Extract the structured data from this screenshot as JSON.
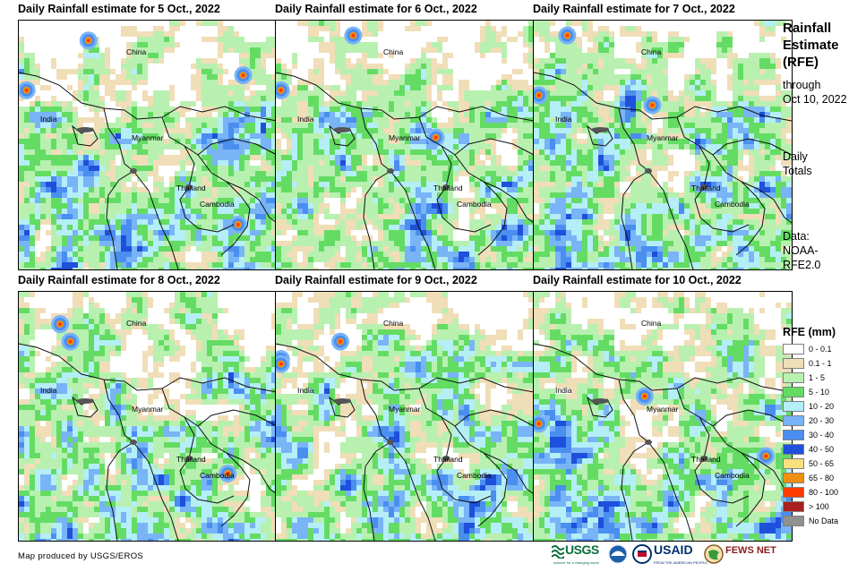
{
  "panels": [
    {
      "title": "Daily Rainfall estimate for 5 Oct., 2022",
      "seed": 5,
      "hot": [
        [
          0.27,
          0.08
        ],
        [
          0.03,
          0.28
        ],
        [
          0.87,
          0.22
        ],
        [
          0.85,
          0.82
        ]
      ]
    },
    {
      "title": "Daily Rainfall estimate for 6 Oct., 2022",
      "seed": 6,
      "hot": [
        [
          0.3,
          0.06
        ],
        [
          0.02,
          0.28
        ],
        [
          0.62,
          0.47
        ]
      ]
    },
    {
      "title": "Daily Rainfall estimate for 7 Oct., 2022",
      "seed": 7,
      "hot": [
        [
          0.13,
          0.06
        ],
        [
          0.02,
          0.3
        ],
        [
          0.46,
          0.34
        ]
      ]
    },
    {
      "title": "Daily Rainfall estimate for 8 Oct., 2022",
      "seed": 8,
      "hot": [
        [
          0.16,
          0.13
        ],
        [
          0.2,
          0.2
        ],
        [
          0.81,
          0.73
        ]
      ]
    },
    {
      "title": "Daily Rainfall estimate for 9 Oct., 2022",
      "seed": 9,
      "hot": [
        [
          0.25,
          0.2
        ],
        [
          0.02,
          0.27
        ],
        [
          0.02,
          0.29
        ]
      ]
    },
    {
      "title": "Daily Rainfall estimate for 10 Oct., 2022",
      "seed": 10,
      "hot": [
        [
          0.43,
          0.42
        ],
        [
          0.02,
          0.53
        ],
        [
          0.9,
          0.66
        ]
      ]
    }
  ],
  "places": {
    "china": "China",
    "india": "India",
    "myanmar": "Myanmar",
    "thailand": "Thailand",
    "cambodia": "Cambodia"
  },
  "sidebar": {
    "title_line1": "Rainfall",
    "title_line2": "Estimate",
    "title_line3": "(RFE)",
    "through": "through",
    "date": "Oct 10, 2022",
    "daily": "Daily",
    "totals": "Totals",
    "data_label": "Data:",
    "data_source1": "NOAA-",
    "data_source2": "RFE2.0"
  },
  "legend": {
    "title": "RFE (mm)",
    "items": [
      {
        "label": "0 - 0.1",
        "color": "#ffffff"
      },
      {
        "label": "0.1 - 1",
        "color": "#f0deb8"
      },
      {
        "label": "1 - 5",
        "color": "#b8f0b0"
      },
      {
        "label": "5 - 10",
        "color": "#64dc64"
      },
      {
        "label": "10 - 20",
        "color": "#b4eef6"
      },
      {
        "label": "20 - 30",
        "color": "#78b4f6"
      },
      {
        "label": "30 - 40",
        "color": "#4a8ef0"
      },
      {
        "label": "40 - 50",
        "color": "#1e50dc"
      },
      {
        "label": "50 - 65",
        "color": "#f8e07c"
      },
      {
        "label": "65 - 80",
        "color": "#f09010"
      },
      {
        "label": "80 - 100",
        "color": "#ff3c00"
      },
      {
        "label": "> 100",
        "color": "#a82020"
      },
      {
        "label": "No Data",
        "color": "#909090"
      }
    ]
  },
  "footer": {
    "credit": "Map produced by USGS/EROS",
    "logo_usgs": "USGS",
    "logo_usgs_tag": "science for a changing world",
    "logo_usaid": "USAID",
    "logo_usaid_tag": "FROM THE AMERICAN PEOPLE",
    "logo_fews": "FEWS NET"
  }
}
